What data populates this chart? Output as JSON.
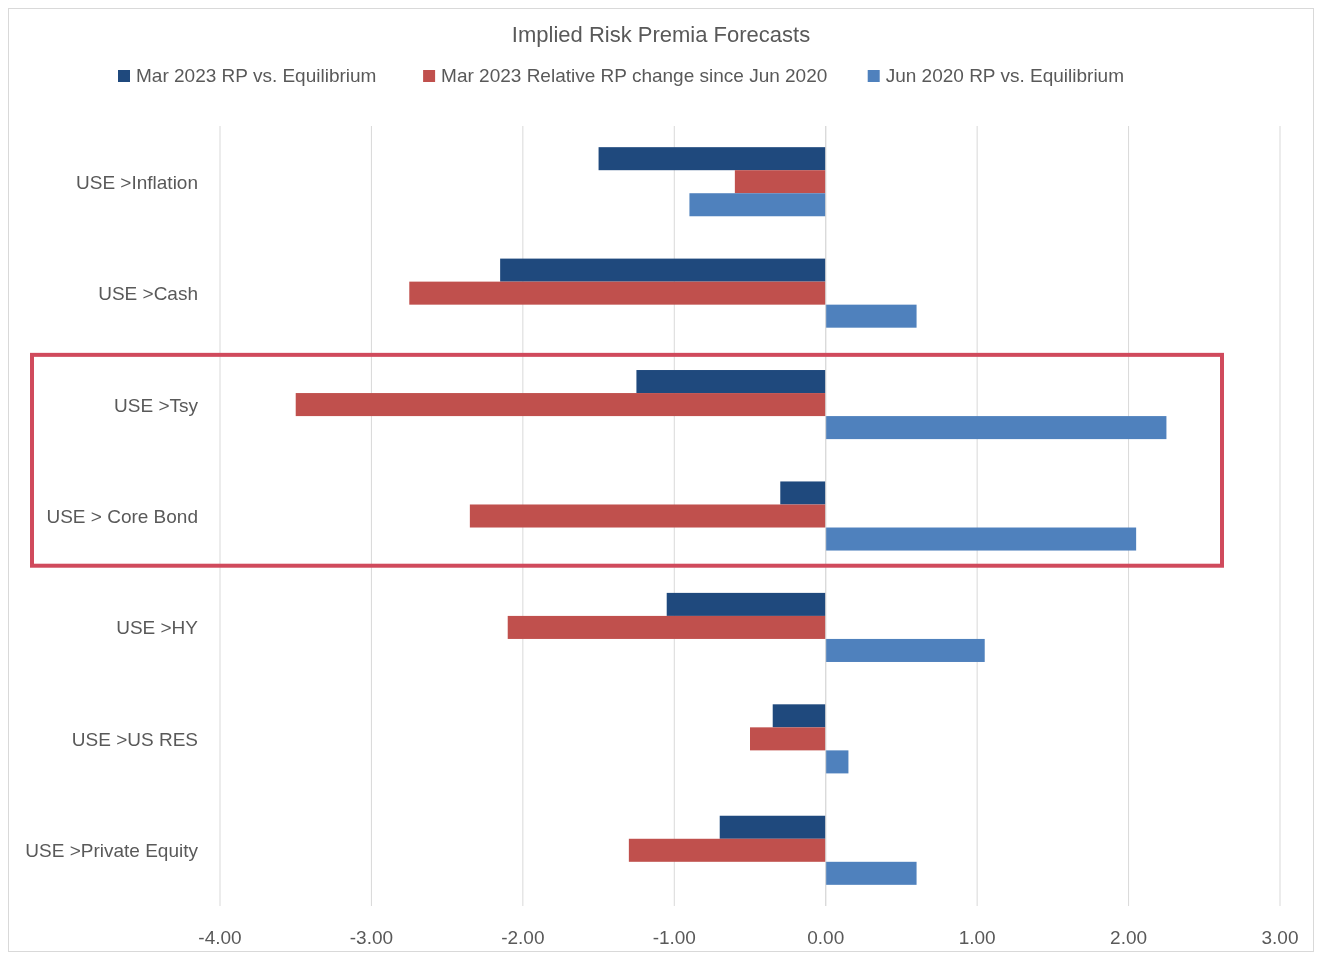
{
  "chart_data": {
    "type": "bar",
    "orientation": "horizontal",
    "title": "Implied Risk Premia Forecasts",
    "categories": [
      "USE >Inflation",
      "USE >Cash",
      "USE >Tsy",
      "USE > Core Bond",
      "USE >HY",
      "USE >US RES",
      "USE >Private Equity"
    ],
    "series": [
      {
        "name": "Mar 2023 RP vs. Equilibrium",
        "color": "#1f497d",
        "values": [
          -1.5,
          -2.15,
          -1.25,
          -0.3,
          -1.05,
          -0.35,
          -0.7
        ]
      },
      {
        "name": "Mar 2023 Relative RP change since Jun 2020",
        "color": "#c0504d",
        "values": [
          -0.6,
          -2.75,
          -3.5,
          -2.35,
          -2.1,
          -0.5,
          -1.3
        ]
      },
      {
        "name": "Jun 2020 RP vs. Equilibrium",
        "color": "#4f81bd",
        "values": [
          -0.9,
          0.6,
          2.25,
          2.05,
          1.05,
          0.15,
          0.6
        ]
      }
    ],
    "xlim": [
      -4,
      3
    ],
    "xticks": [
      {
        "value": -4,
        "label": "-4.00"
      },
      {
        "value": -3,
        "label": "-3.00"
      },
      {
        "value": -2,
        "label": "-2.00"
      },
      {
        "value": -1,
        "label": "-1.00"
      },
      {
        "value": 0,
        "label": "0.00"
      },
      {
        "value": 1,
        "label": "1.00"
      },
      {
        "value": 2,
        "label": "2.00"
      },
      {
        "value": 3,
        "label": "3.00"
      }
    ],
    "grid": "x",
    "legend": "top"
  }
}
